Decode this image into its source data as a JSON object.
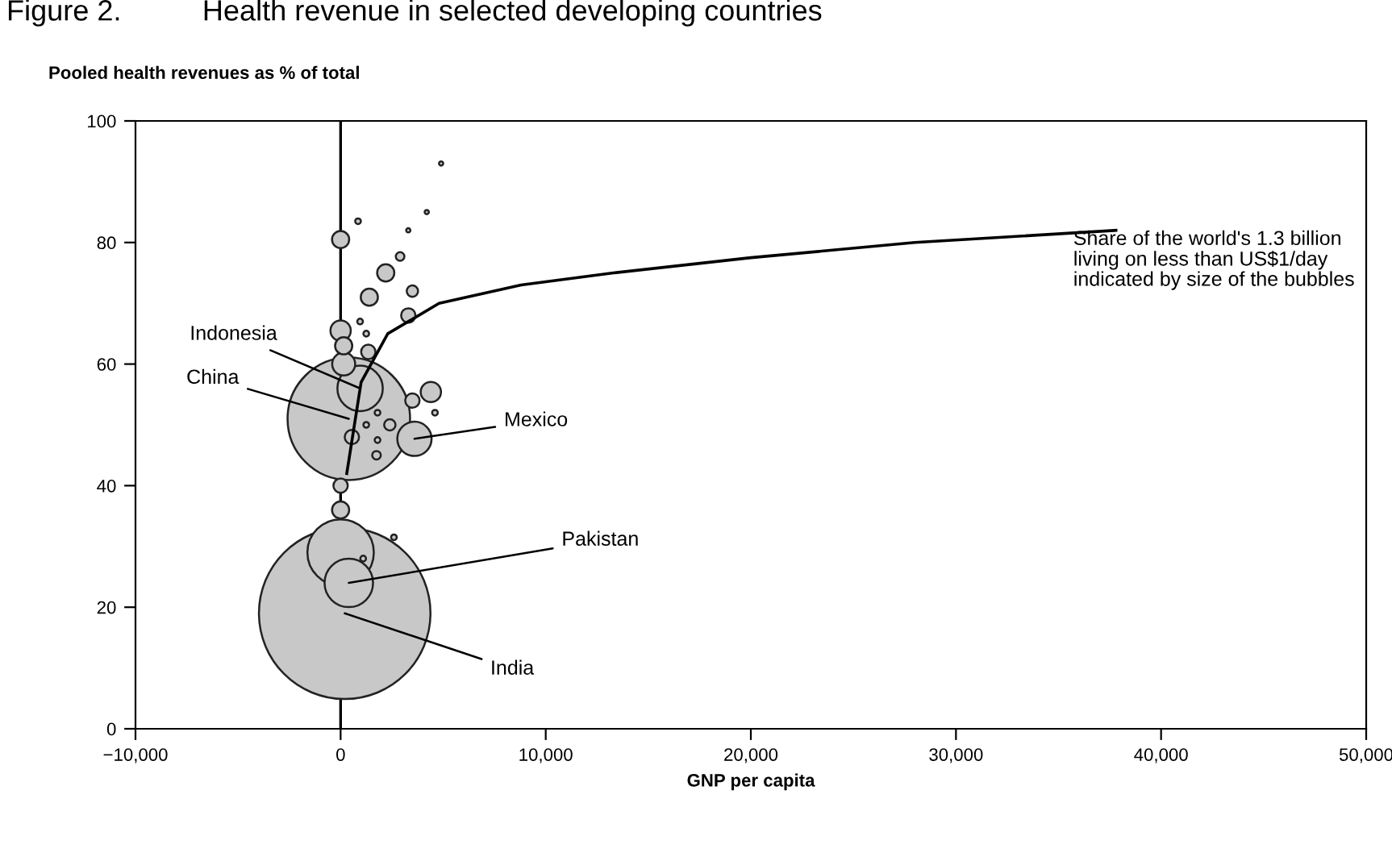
{
  "chart_data": {
    "type": "bubble",
    "title": "Figure 2.          Health revenue in selected developing countries",
    "ylabel": "Pooled health revenues as % of total",
    "xlabel": "GNP per capita",
    "xlim": [
      -10000,
      50000
    ],
    "xticks": [
      {
        "value": -10000,
        "label": "−10,000"
      },
      0,
      {
        "value": 10000,
        "label": "10,000"
      },
      {
        "value": 20000,
        "label": "20,000"
      },
      {
        "value": 30000,
        "label": "30,000"
      },
      {
        "value": 40000,
        "label": "40,000"
      },
      {
        "value": 50000,
        "label": "50,000"
      }
    ],
    "ylim": [
      0,
      100
    ],
    "yticks": [
      0,
      20,
      40,
      60,
      80,
      100
    ],
    "grid": false,
    "legend": false,
    "series": [
      {
        "color": "#c8c8c8",
        "x": [
          200,
          0,
          400,
          400,
          3600,
          950,
          150,
          1100,
          2600,
          0,
          0,
          0,
          0,
          150,
          4400,
          3500,
          4600,
          550,
          2400,
          1250,
          1800,
          1800,
          1750,
          1350,
          950,
          1250,
          3300,
          1400,
          2200,
          3500,
          2900,
          850,
          3300,
          4200,
          4900
        ],
        "values": [
          19,
          29,
          24,
          51,
          47.7,
          56,
          60,
          28,
          31.5,
          36,
          40,
          80.5,
          65.5,
          63,
          55.4,
          54,
          52,
          48,
          50,
          50,
          52,
          47.5,
          45,
          62,
          67,
          65,
          68,
          71,
          75,
          72,
          77.7,
          83.5,
          82,
          85,
          93
        ],
        "sizes": [
          1,
          0.15,
          0.08,
          0.51,
          0.04,
          0.07,
          0.018,
          0.0011,
          0.0011,
          0.01,
          0.007,
          0.01,
          0.014,
          0.01,
          0.014,
          0.007,
          0.0011,
          0.007,
          0.0044,
          0.0011,
          0.0011,
          0.0011,
          0.0025,
          0.007,
          0.0011,
          0.0011,
          0.007,
          0.01,
          0.01,
          0.0044,
          0.0025,
          0.0011,
          0.0006,
          0.0006,
          0.0006
        ]
      },
      {
        "type": "line",
        "color": "#000000",
        "x": [
          300,
          1000,
          2300,
          4800,
          8800,
          13300,
          20000,
          28000,
          37800
        ],
        "values": [
          42,
          57,
          65,
          70,
          73,
          75,
          77.5,
          80,
          82
        ]
      }
    ],
    "ref_lines": [
      {
        "axis": "x",
        "value": 0,
        "color": "#000000"
      }
    ],
    "annotations": [
      {
        "text": "India",
        "x": 200,
        "y": 19
      },
      {
        "text": "Pakistan",
        "x": 400,
        "y": 24
      },
      {
        "text": "China",
        "x": 400,
        "y": 51
      },
      {
        "text": "Mexico",
        "x": 3600,
        "y": 47.7
      },
      {
        "text": "Indonesia",
        "x": 950,
        "y": 56
      },
      "Share of the world's 1.3 billion\nliving on less than US$1/day\nindicated by size of the bubbles"
    ]
  }
}
